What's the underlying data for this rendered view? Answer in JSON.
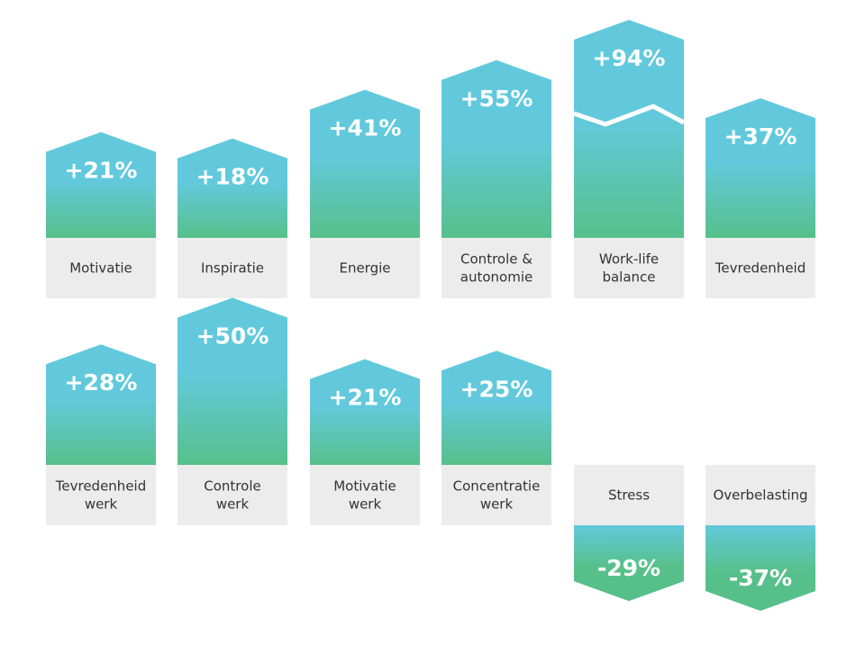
{
  "chart_data": {
    "type": "bar",
    "colors": {
      "top": "#62c9dc",
      "bottom": "#57c08a",
      "label_box": "#ececec"
    },
    "rows": [
      {
        "categories": [
          [
            "Motivatie"
          ],
          [
            "Inspiratie"
          ],
          [
            "Energie"
          ],
          [
            "Controle &",
            "autonomie"
          ],
          [
            "Work-life",
            "balance"
          ],
          [
            "Tevredenheid"
          ]
        ],
        "values": [
          21,
          18,
          41,
          55,
          94,
          37
        ],
        "labels": [
          "+21%",
          "+18%",
          "+41%",
          "+55%",
          "+94%",
          "+37%"
        ],
        "broken_axis": [
          false,
          false,
          false,
          false,
          true,
          false
        ]
      },
      {
        "categories": [
          [
            "Tevredenheid",
            "werk"
          ],
          [
            "Controle",
            "werk"
          ],
          [
            "Motivatie",
            "werk"
          ],
          [
            "Concentratie",
            "werk"
          ],
          [
            "Stress"
          ],
          [
            "Overbelasting"
          ]
        ],
        "values": [
          28,
          50,
          21,
          25,
          -29,
          -37
        ],
        "labels": [
          "+28%",
          "+50%",
          "+21%",
          "+25%",
          "-29%",
          "-37%"
        ],
        "broken_axis": [
          false,
          false,
          false,
          false,
          false,
          false
        ]
      }
    ]
  }
}
